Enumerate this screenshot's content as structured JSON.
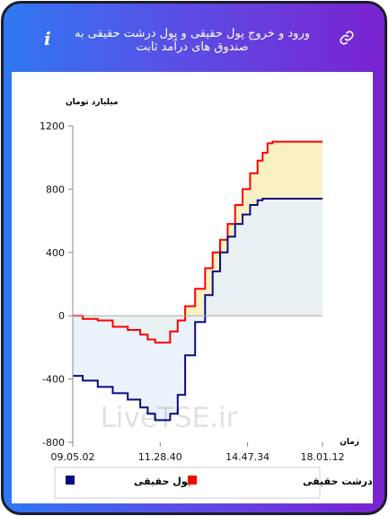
{
  "header": {
    "title": "ورود و خروج پول حقیقی و پول درشت حقیقی به صندوق های درآمد ثابت",
    "info_icon": "info-icon",
    "link_icon": "link-icon"
  },
  "watermark": "LiveTSE.ir",
  "chart_data": {
    "type": "line",
    "title": "",
    "ylabel": "میلیارد تومان",
    "xlabel": "زمان",
    "ylim": [
      -800,
      1200
    ],
    "yticks": [
      -800,
      -400,
      0,
      400,
      800,
      1200
    ],
    "x_tick_labels": [
      "09.05.02",
      "11.28.40",
      "14.47.34",
      "18.01.12"
    ],
    "x_tick_positions": [
      0,
      0.35,
      0.7,
      1.0
    ],
    "grid": false,
    "legend_position": "bottom",
    "series": [
      {
        "name": "پول درشت حقیقی",
        "color": "#ff0000",
        "fill": "#f7efb8",
        "x": [
          0,
          0.04,
          0.1,
          0.16,
          0.22,
          0.27,
          0.3,
          0.33,
          0.36,
          0.39,
          0.42,
          0.45,
          0.49,
          0.53,
          0.56,
          0.59,
          0.62,
          0.65,
          0.68,
          0.71,
          0.74,
          0.76,
          0.78,
          0.8,
          0.85,
          0.9,
          0.95,
          1.0
        ],
        "y": [
          0,
          -20,
          -30,
          -70,
          -90,
          -120,
          -150,
          -170,
          -170,
          -100,
          -30,
          60,
          170,
          300,
          400,
          480,
          580,
          700,
          800,
          900,
          980,
          1030,
          1090,
          1100,
          1100,
          1100,
          1100,
          1100
        ]
      },
      {
        "name": "پول حقیقی",
        "color": "#0a0a84",
        "fill": "#e6f1fb",
        "x": [
          0,
          0.04,
          0.1,
          0.16,
          0.22,
          0.27,
          0.3,
          0.33,
          0.36,
          0.39,
          0.42,
          0.45,
          0.49,
          0.53,
          0.56,
          0.59,
          0.62,
          0.65,
          0.68,
          0.71,
          0.74,
          0.76,
          0.78,
          0.8,
          0.85,
          0.9,
          0.95,
          1.0
        ],
        "y": [
          -380,
          -410,
          -450,
          -490,
          -530,
          -580,
          -620,
          -660,
          -660,
          -620,
          -500,
          -250,
          -40,
          130,
          280,
          400,
          500,
          580,
          640,
          700,
          730,
          740,
          740,
          740,
          740,
          740,
          740,
          740
        ]
      }
    ]
  }
}
